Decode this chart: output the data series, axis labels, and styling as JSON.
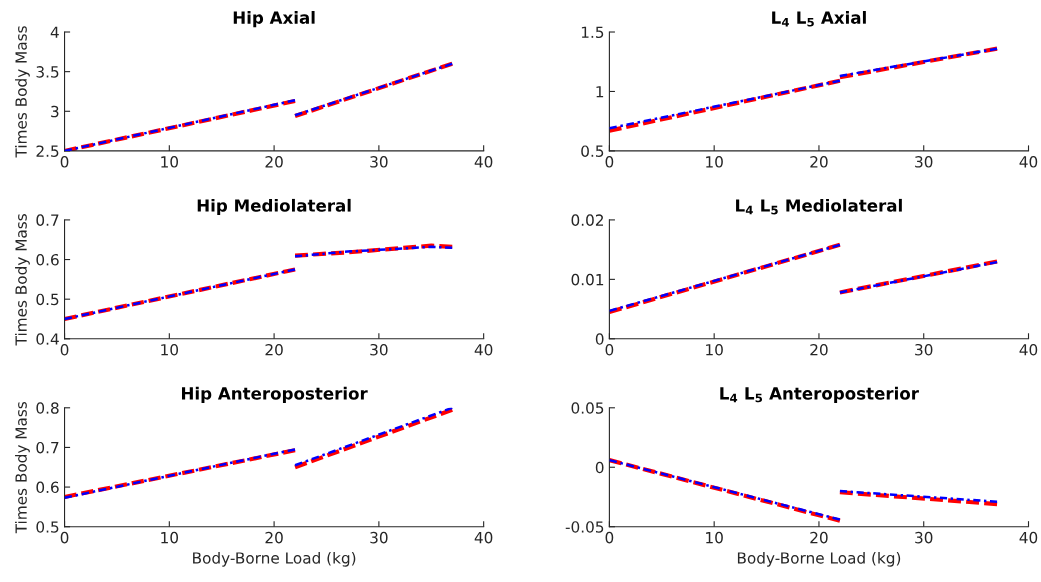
{
  "chart_data": [
    {
      "type": "line",
      "title": "Hip Axial",
      "ylabel": "Times Body Mass",
      "xlim": [
        0,
        40
      ],
      "xticks": [
        0,
        10,
        20,
        30,
        40
      ],
      "ylim": [
        2.5,
        4
      ],
      "yticks": [
        2.5,
        3,
        3.5,
        4
      ],
      "grid": false,
      "series": [
        {
          "color": "#ff0000",
          "line_style": "dashed",
          "x": [
            0,
            22
          ],
          "values": [
            2.5,
            3.13
          ]
        },
        {
          "color": "#ff0000",
          "line_style": "dashed",
          "x": [
            22,
            37
          ],
          "values": [
            2.94,
            3.6
          ]
        },
        {
          "color": "#0000ff",
          "line_style": "dashdot",
          "x": [
            0,
            22
          ],
          "values": [
            2.5,
            3.14
          ]
        },
        {
          "color": "#0000ff",
          "line_style": "dashdot",
          "x": [
            22,
            37
          ],
          "values": [
            2.95,
            3.6
          ]
        }
      ]
    },
    {
      "type": "line",
      "title": "L$_{4}$ L$_{5}$ Axial",
      "xlim": [
        0,
        40
      ],
      "xticks": [
        0,
        10,
        20,
        30,
        40
      ],
      "ylim": [
        0.5,
        1.5
      ],
      "yticks": [
        0.5,
        1,
        1.5
      ],
      "grid": false,
      "series": [
        {
          "color": "#ff0000",
          "line_style": "dashed",
          "x": [
            0,
            22
          ],
          "values": [
            0.67,
            1.09
          ]
        },
        {
          "color": "#ff0000",
          "line_style": "dashed",
          "x": [
            22,
            37
          ],
          "values": [
            1.12,
            1.36
          ]
        },
        {
          "color": "#0000ff",
          "line_style": "dashdot",
          "x": [
            0,
            22
          ],
          "values": [
            0.69,
            1.09
          ]
        },
        {
          "color": "#0000ff",
          "line_style": "dashdot",
          "x": [
            22,
            37
          ],
          "values": [
            1.13,
            1.36
          ]
        }
      ]
    },
    {
      "type": "line",
      "title": "Hip Mediolateral",
      "ylabel": "Times Body Mass",
      "xlim": [
        0,
        40
      ],
      "xticks": [
        0,
        10,
        20,
        30,
        40
      ],
      "ylim": [
        0.4,
        0.7
      ],
      "yticks": [
        0.4,
        0.5,
        0.6,
        0.7
      ],
      "grid": false,
      "series": [
        {
          "color": "#ff0000",
          "line_style": "dashed",
          "x": [
            0,
            22
          ],
          "values": [
            0.45,
            0.575
          ]
        },
        {
          "color": "#ff0000",
          "line_style": "dashed",
          "x": [
            22,
            27,
            35,
            37
          ],
          "values": [
            0.61,
            0.618,
            0.635,
            0.632
          ]
        },
        {
          "color": "#0000ff",
          "line_style": "dashdot",
          "x": [
            0,
            22
          ],
          "values": [
            0.45,
            0.575
          ]
        },
        {
          "color": "#0000ff",
          "line_style": "dashdot",
          "x": [
            22,
            27,
            35,
            37
          ],
          "values": [
            0.608,
            0.62,
            0.632,
            0.63
          ]
        }
      ]
    },
    {
      "type": "line",
      "title": "L$_{4}$ L$_{5}$ Mediolateral",
      "xlim": [
        0,
        40
      ],
      "xticks": [
        0,
        10,
        20,
        30,
        40
      ],
      "ylim": [
        0,
        0.02
      ],
      "yticks": [
        0,
        0.01,
        0.02
      ],
      "grid": false,
      "series": [
        {
          "color": "#ff0000",
          "line_style": "dashed",
          "x": [
            0,
            22
          ],
          "values": [
            0.0045,
            0.0158
          ]
        },
        {
          "color": "#ff0000",
          "line_style": "dashed",
          "x": [
            22,
            37
          ],
          "values": [
            0.0078,
            0.013
          ]
        },
        {
          "color": "#0000ff",
          "line_style": "dashdot",
          "x": [
            0,
            22
          ],
          "values": [
            0.0047,
            0.0158
          ]
        },
        {
          "color": "#0000ff",
          "line_style": "dashdot",
          "x": [
            22,
            37
          ],
          "values": [
            0.0078,
            0.0129
          ]
        }
      ]
    },
    {
      "type": "line",
      "title": "Hip Anteroposterior",
      "ylabel": "Times Body Mass",
      "xlabel": "Body-Borne Load (kg)",
      "xlim": [
        0,
        40
      ],
      "xticks": [
        0,
        10,
        20,
        30,
        40
      ],
      "ylim": [
        0.5,
        0.8
      ],
      "yticks": [
        0.5,
        0.6,
        0.7,
        0.8
      ],
      "grid": false,
      "series": [
        {
          "color": "#ff0000",
          "line_style": "dashed",
          "x": [
            0,
            22
          ],
          "values": [
            0.575,
            0.693
          ]
        },
        {
          "color": "#ff0000",
          "line_style": "dashed",
          "x": [
            22,
            37
          ],
          "values": [
            0.65,
            0.795
          ]
        },
        {
          "color": "#0000ff",
          "line_style": "dashdot",
          "x": [
            0,
            22
          ],
          "values": [
            0.573,
            0.695
          ]
        },
        {
          "color": "#0000ff",
          "line_style": "dashdot",
          "x": [
            22,
            37
          ],
          "values": [
            0.655,
            0.8
          ]
        }
      ]
    },
    {
      "type": "line",
      "title": "L$_{4}$ L$_{5}$ Anteroposterior",
      "xlabel": "Body-Borne Load (kg)",
      "xlim": [
        0,
        40
      ],
      "xticks": [
        0,
        10,
        20,
        30,
        40
      ],
      "ylim": [
        -0.05,
        0.05
      ],
      "yticks": [
        -0.05,
        0,
        0.05
      ],
      "grid": false,
      "series": [
        {
          "color": "#ff0000",
          "line_style": "dashed",
          "x": [
            0,
            22
          ],
          "values": [
            0.006,
            -0.045
          ]
        },
        {
          "color": "#ff0000",
          "line_style": "dashed",
          "x": [
            22,
            37
          ],
          "values": [
            -0.021,
            -0.031
          ]
        },
        {
          "color": "#0000ff",
          "line_style": "dashdot",
          "x": [
            0,
            22
          ],
          "values": [
            0.006,
            -0.044
          ]
        },
        {
          "color": "#0000ff",
          "line_style": "dashdot",
          "x": [
            22,
            37
          ],
          "values": [
            -0.02,
            -0.029
          ]
        }
      ]
    }
  ]
}
